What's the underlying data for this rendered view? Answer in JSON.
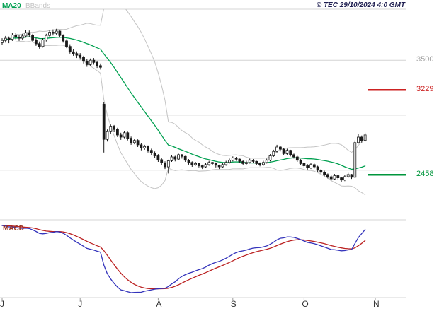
{
  "header": {
    "copyright": "© TEC 29/10/2024 4:0 GMT"
  },
  "legend": {
    "ma20": "MA20",
    "bbands": "BBands",
    "macd": "MACD"
  },
  "chart_data": {
    "type": "candlestick",
    "indicators": [
      "MA20",
      "BBands",
      "MACD"
    ],
    "price_panel": {
      "max_price": 3964,
      "min_price": 2048
    },
    "price_axis": {
      "gridlines": [
        {
          "price": 3500,
          "label": "3500"
        },
        {
          "price": 3000
        },
        {
          "price": 2500
        }
      ]
    },
    "levels": [
      {
        "label": "3229",
        "price": 3229,
        "color": "#cc2222",
        "role": "resistance"
      },
      {
        "label": "2458",
        "price": 2458,
        "color": "#00963c",
        "role": "support"
      }
    ],
    "x_axis": {
      "total_slots": 110,
      "months": [
        {
          "label": "J",
          "day": 0
        },
        {
          "label": "J",
          "day": 23
        },
        {
          "label": "A",
          "day": 46
        },
        {
          "label": "S",
          "day": 68
        },
        {
          "label": "O",
          "day": 89
        },
        {
          "label": "N",
          "day": 110
        }
      ]
    },
    "colors": {
      "ma20": "#00a050",
      "bbands": "#c4c4c4",
      "candle": "#1a1a1a",
      "grid": "#d4d4d4",
      "tick": "#999999",
      "axis_label": "#a0a0a0",
      "month_label": "#333333",
      "macd_line": "#3333bb",
      "macd_signal": "#bb2222",
      "macd_label": "#993322",
      "copyright_text": "#1e1e50"
    },
    "candles": [
      [
        3660,
        3700,
        3640,
        3680
      ],
      [
        3680,
        3720,
        3660,
        3700
      ],
      [
        3700,
        3715,
        3655,
        3690
      ],
      [
        3690,
        3750,
        3675,
        3730
      ],
      [
        3730,
        3745,
        3690,
        3710
      ],
      [
        3710,
        3730,
        3675,
        3700
      ],
      [
        3700,
        3740,
        3685,
        3720
      ],
      [
        3720,
        3775,
        3705,
        3750
      ],
      [
        3750,
        3770,
        3710,
        3730
      ],
      [
        3730,
        3740,
        3665,
        3680
      ],
      [
        3680,
        3700,
        3630,
        3650
      ],
      [
        3650,
        3670,
        3605,
        3625
      ],
      [
        3625,
        3700,
        3615,
        3685
      ],
      [
        3685,
        3740,
        3670,
        3725
      ],
      [
        3725,
        3775,
        3710,
        3755
      ],
      [
        3755,
        3780,
        3725,
        3745
      ],
      [
        3745,
        3785,
        3730,
        3765
      ],
      [
        3765,
        3770,
        3710,
        3725
      ],
      [
        3725,
        3735,
        3660,
        3675
      ],
      [
        3675,
        3690,
        3610,
        3625
      ],
      [
        3625,
        3645,
        3560,
        3575
      ],
      [
        3575,
        3600,
        3540,
        3560
      ],
      [
        3560,
        3580,
        3520,
        3545
      ],
      [
        3545,
        3565,
        3505,
        3525
      ],
      [
        3525,
        3540,
        3470,
        3490
      ],
      [
        3490,
        3510,
        3440,
        3460
      ],
      [
        3460,
        3515,
        3450,
        3500
      ],
      [
        3500,
        3520,
        3460,
        3480
      ],
      [
        3480,
        3495,
        3430,
        3450
      ],
      [
        3450,
        3470,
        3415,
        3435
      ],
      [
        3100,
        3120,
        2660,
        2780
      ],
      [
        2780,
        2870,
        2760,
        2850
      ],
      [
        2850,
        2915,
        2830,
        2900
      ],
      [
        2900,
        2910,
        2845,
        2870
      ],
      [
        2870,
        2885,
        2800,
        2820
      ],
      [
        2820,
        2840,
        2775,
        2800
      ],
      [
        2800,
        2855,
        2790,
        2840
      ],
      [
        2840,
        2850,
        2770,
        2790
      ],
      [
        2790,
        2805,
        2730,
        2750
      ],
      [
        2750,
        2785,
        2735,
        2770
      ],
      [
        2770,
        2780,
        2710,
        2730
      ],
      [
        2730,
        2745,
        2680,
        2700
      ],
      [
        2700,
        2730,
        2685,
        2715
      ],
      [
        2715,
        2725,
        2660,
        2680
      ],
      [
        2680,
        2695,
        2635,
        2655
      ],
      [
        2655,
        2670,
        2610,
        2630
      ],
      [
        2630,
        2645,
        2575,
        2595
      ],
      [
        2595,
        2610,
        2545,
        2565
      ],
      [
        2565,
        2580,
        2510,
        2530
      ],
      [
        2530,
        2595,
        2470,
        2585
      ],
      [
        2585,
        2635,
        2575,
        2620
      ],
      [
        2620,
        2630,
        2580,
        2600
      ],
      [
        2600,
        2650,
        2590,
        2640
      ],
      [
        2640,
        2645,
        2605,
        2625
      ],
      [
        2625,
        2630,
        2575,
        2590
      ],
      [
        2590,
        2600,
        2550,
        2570
      ],
      [
        2570,
        2580,
        2530,
        2550
      ],
      [
        2550,
        2575,
        2540,
        2560
      ],
      [
        2560,
        2565,
        2525,
        2540
      ],
      [
        2540,
        2550,
        2510,
        2530
      ],
      [
        2530,
        2565,
        2520,
        2550
      ],
      [
        2550,
        2585,
        2540,
        2570
      ],
      [
        2570,
        2575,
        2545,
        2560
      ],
      [
        2560,
        2570,
        2525,
        2545
      ],
      [
        2545,
        2550,
        2510,
        2530
      ],
      [
        2530,
        2565,
        2520,
        2550
      ],
      [
        2550,
        2585,
        2540,
        2570
      ],
      [
        2570,
        2605,
        2560,
        2590
      ],
      [
        2590,
        2625,
        2580,
        2610
      ],
      [
        2610,
        2620,
        2585,
        2600
      ],
      [
        2600,
        2605,
        2565,
        2580
      ],
      [
        2580,
        2590,
        2545,
        2560
      ],
      [
        2560,
        2585,
        2550,
        2570
      ],
      [
        2570,
        2605,
        2560,
        2590
      ],
      [
        2590,
        2600,
        2565,
        2580
      ],
      [
        2580,
        2585,
        2545,
        2560
      ],
      [
        2560,
        2570,
        2535,
        2550
      ],
      [
        2550,
        2585,
        2540,
        2570
      ],
      [
        2570,
        2605,
        2560,
        2590
      ],
      [
        2590,
        2645,
        2580,
        2630
      ],
      [
        2630,
        2685,
        2620,
        2670
      ],
      [
        2670,
        2730,
        2660,
        2710
      ],
      [
        2710,
        2720,
        2670,
        2690
      ],
      [
        2690,
        2700,
        2635,
        2650
      ],
      [
        2650,
        2695,
        2640,
        2680
      ],
      [
        2680,
        2685,
        2625,
        2640
      ],
      [
        2640,
        2650,
        2605,
        2620
      ],
      [
        2620,
        2630,
        2575,
        2590
      ],
      [
        2590,
        2600,
        2545,
        2560
      ],
      [
        2560,
        2570,
        2525,
        2540
      ],
      [
        2540,
        2555,
        2505,
        2520
      ],
      [
        2520,
        2565,
        2510,
        2550
      ],
      [
        2550,
        2560,
        2515,
        2530
      ],
      [
        2530,
        2540,
        2485,
        2500
      ],
      [
        2500,
        2510,
        2465,
        2480
      ],
      [
        2480,
        2495,
        2445,
        2460
      ],
      [
        2460,
        2470,
        2425,
        2440
      ],
      [
        2440,
        2455,
        2405,
        2420
      ],
      [
        2420,
        2465,
        2410,
        2450
      ],
      [
        2450,
        2455,
        2415,
        2430
      ],
      [
        2430,
        2440,
        2395,
        2410
      ],
      [
        2410,
        2455,
        2400,
        2440
      ],
      [
        2440,
        2475,
        2430,
        2460
      ],
      [
        2460,
        2465,
        2420,
        2435
      ],
      [
        2435,
        2770,
        2430,
        2750
      ],
      [
        2750,
        2830,
        2740,
        2800
      ],
      [
        2800,
        2815,
        2750,
        2770
      ],
      [
        2770,
        2840,
        2760,
        2820
      ]
    ]
  }
}
